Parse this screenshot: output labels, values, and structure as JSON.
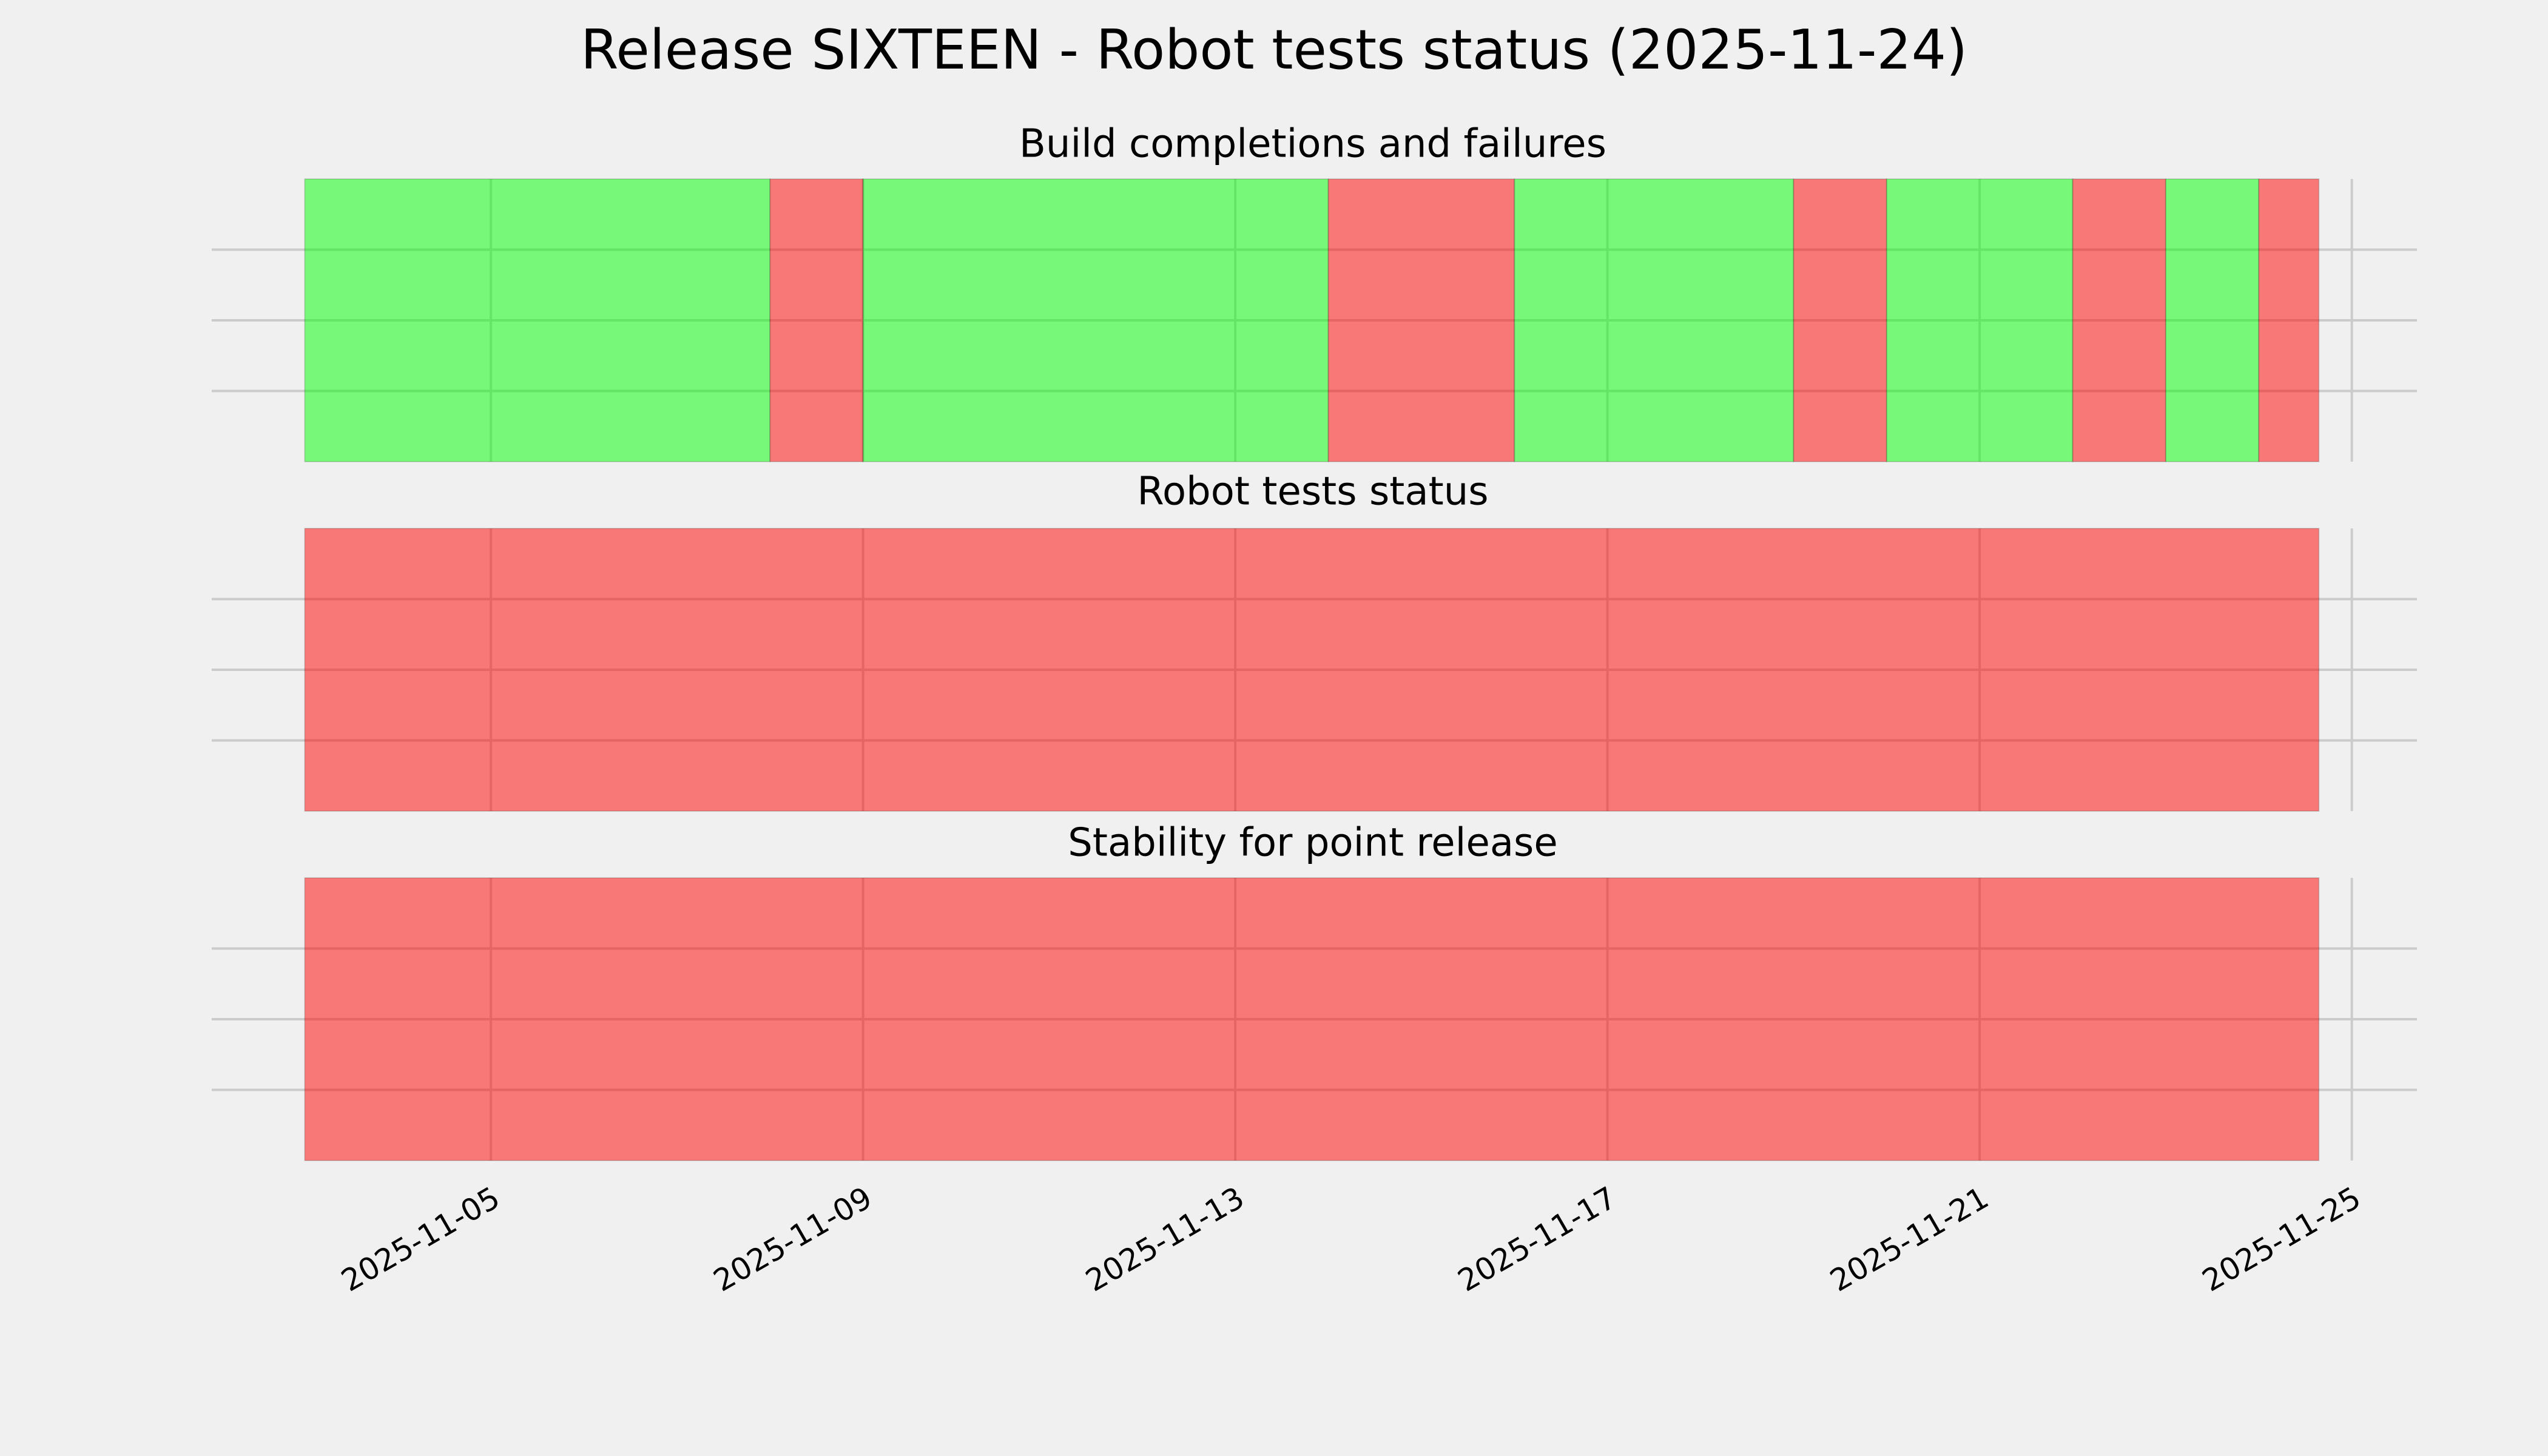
{
  "title": "Release SIXTEEN - Robot tests status (2025-11-24)",
  "chart_data": [
    {
      "type": "timeline",
      "title": "Build completions and failures",
      "x": [
        "2025-11-03",
        "2025-11-08",
        "2025-11-09",
        "2025-11-14",
        "2025-11-16",
        "2025-11-19",
        "2025-11-20",
        "2025-11-22",
        "2025-11-23",
        "2025-11-24",
        "2025-11-24T15:30"
      ],
      "colors": [
        "#00ff00",
        "#ff0000",
        "#00ff00",
        "#ff0000",
        "#00ff00",
        "#ff0000",
        "#00ff00",
        "#ff0000",
        "#00ff00",
        "#ff0000"
      ],
      "alpha": 0.5,
      "xlim": [
        "2025-11-02",
        "2025-11-26"
      ],
      "xticks": [
        "2025-11-05",
        "2025-11-09",
        "2025-11-13",
        "2025-11-17",
        "2025-11-21",
        "2025-11-25"
      ],
      "ylim": [
        0,
        1
      ],
      "yticks": [
        0.25,
        0.5,
        0.75
      ],
      "grid": true,
      "show_xtick_labels": false
    },
    {
      "type": "timeline",
      "title": "Robot tests status",
      "x": [
        "2025-11-03",
        "2025-11-24T15:30"
      ],
      "colors": [
        "#ff0000"
      ],
      "alpha": 0.5,
      "xlim": [
        "2025-11-02",
        "2025-11-26"
      ],
      "xticks": [
        "2025-11-05",
        "2025-11-09",
        "2025-11-13",
        "2025-11-17",
        "2025-11-21",
        "2025-11-25"
      ],
      "ylim": [
        0,
        1
      ],
      "yticks": [
        0.25,
        0.5,
        0.75
      ],
      "grid": true,
      "show_xtick_labels": false
    },
    {
      "type": "timeline",
      "title": "Stability for point release",
      "x": [
        "2025-11-03",
        "2025-11-24T15:30"
      ],
      "colors": [
        "#ff0000"
      ],
      "alpha": 0.5,
      "xlim": [
        "2025-11-02",
        "2025-11-26"
      ],
      "xticks": [
        "2025-11-05",
        "2025-11-09",
        "2025-11-13",
        "2025-11-17",
        "2025-11-21",
        "2025-11-25"
      ],
      "ylim": [
        0,
        1
      ],
      "yticks": [
        0.25,
        0.5,
        0.75
      ],
      "grid": true,
      "show_xtick_labels": true
    }
  ]
}
